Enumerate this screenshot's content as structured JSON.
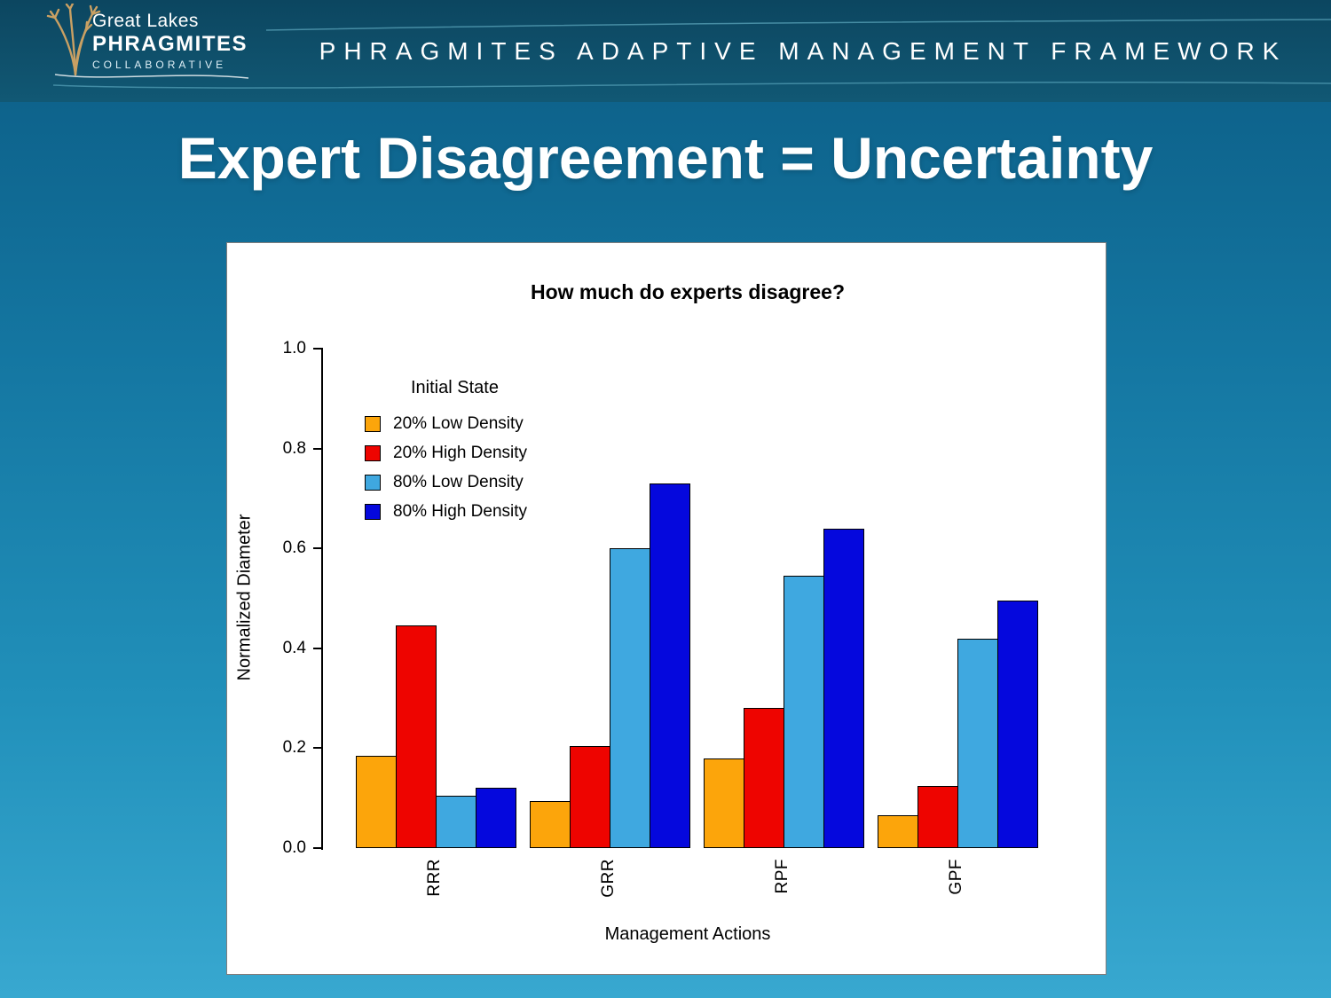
{
  "header": {
    "brand": {
      "name_line1": "Great Lakes",
      "name_line2": "PHRAGMITES",
      "name_line3": "COLLABORATIVE"
    },
    "title": "PHRAGMITES ADAPTIVE MANAGEMENT FRAMEWORK"
  },
  "slide": {
    "title": "Expert Disagreement = Uncertainty"
  },
  "chart_data": {
    "type": "bar",
    "title": "How much do experts disagree?",
    "xlabel": "Management Actions",
    "ylabel": "Normalized Diameter",
    "ylim": [
      0.0,
      1.0
    ],
    "yticks": [
      0.0,
      0.2,
      0.4,
      0.6,
      0.8,
      1.0
    ],
    "grid": false,
    "legend_title": "Initial State",
    "legend_position": "top-left-inside",
    "categories": [
      "RRR",
      "GRR",
      "RPF",
      "GPF"
    ],
    "series": [
      {
        "name": "20% Low Density",
        "color": "#FCA50B",
        "values": [
          0.185,
          0.095,
          0.18,
          0.065
        ]
      },
      {
        "name": "20% High Density",
        "color": "#EE0400",
        "values": [
          0.445,
          0.205,
          0.28,
          0.125
        ]
      },
      {
        "name": "80% Low Density",
        "color": "#3FA8E0",
        "values": [
          0.105,
          0.6,
          0.545,
          0.42
        ]
      },
      {
        "name": "80% High Density",
        "color": "#0508DD",
        "values": [
          0.12,
          0.73,
          0.64,
          0.495
        ]
      }
    ]
  },
  "theme": {
    "header_bg": "#0c4660",
    "slide_bg_top": "#0b5b83",
    "slide_bg_bottom": "#38a8d0",
    "accent_gold": "#C9A063",
    "accent_lightblue": "#7FCFE3"
  }
}
